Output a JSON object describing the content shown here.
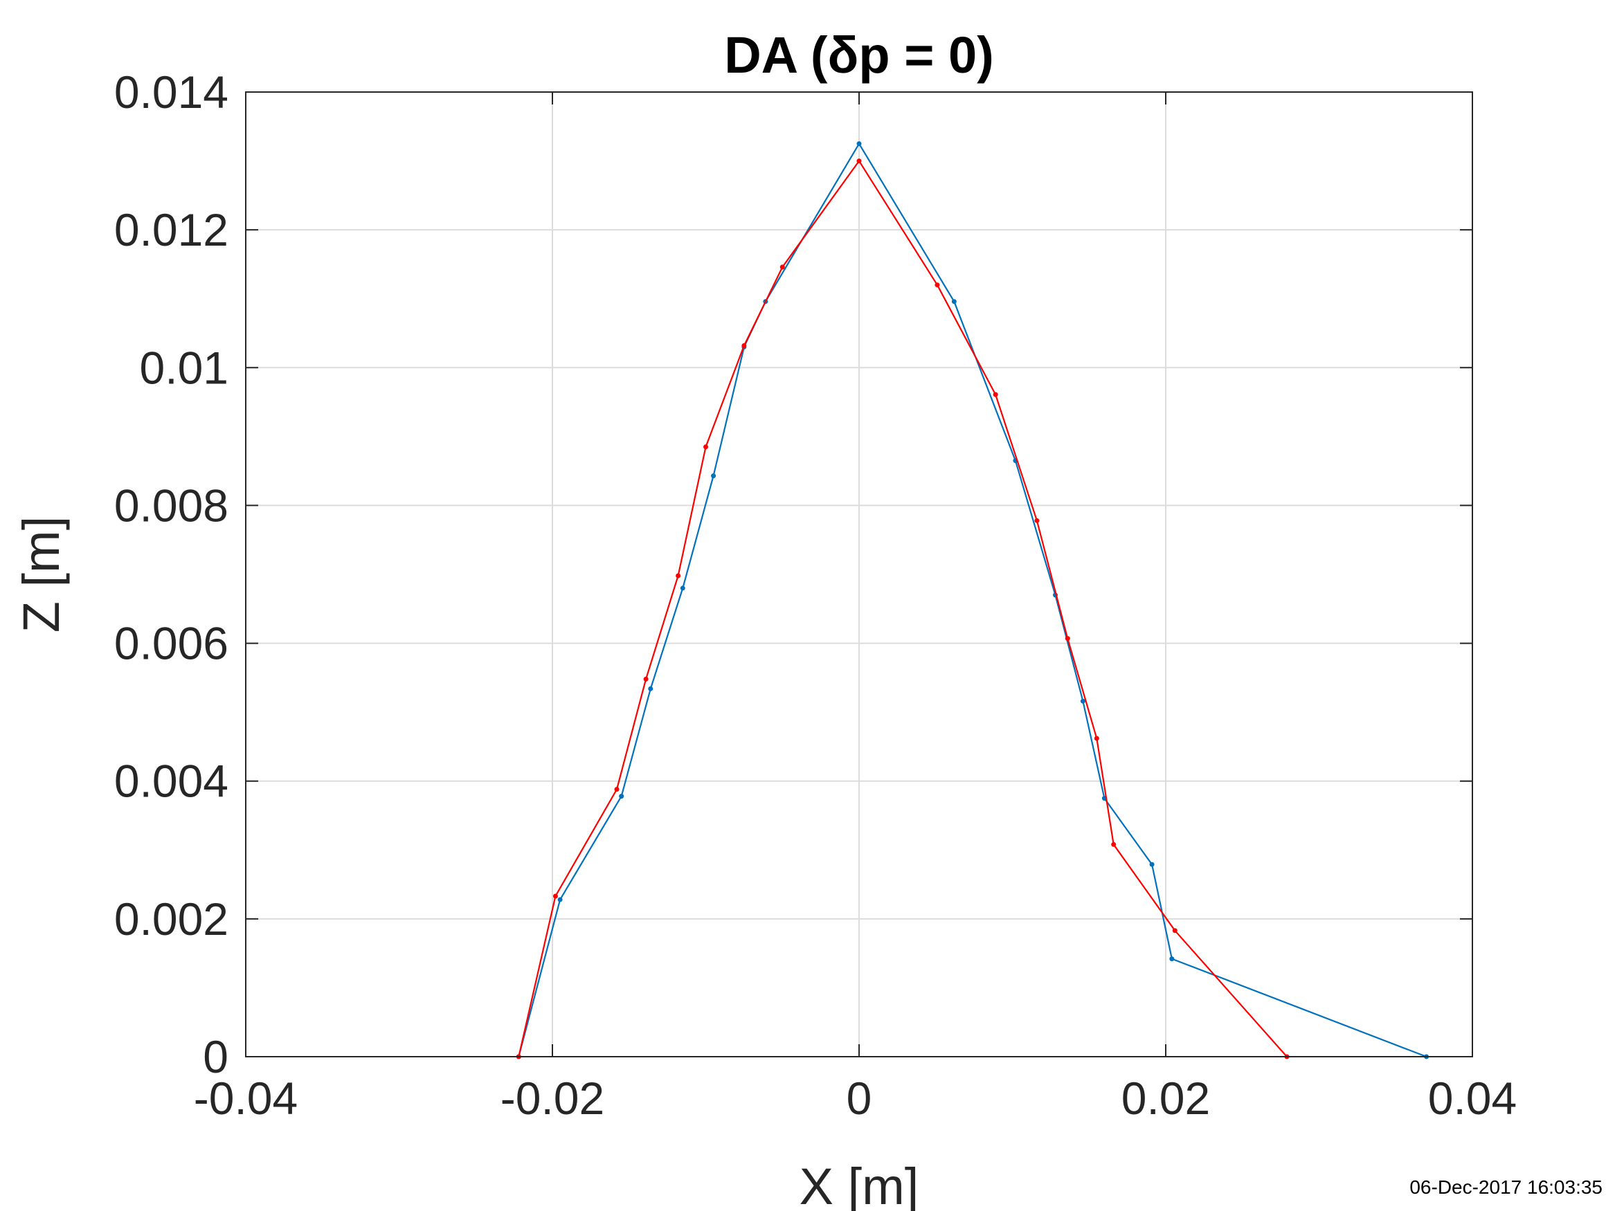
{
  "chart_data": {
    "type": "line",
    "title": "DA (δp = 0)",
    "xlabel": "X [m]",
    "ylabel": "Z [m]",
    "xlim": [
      -0.04,
      0.04
    ],
    "ylim": [
      0,
      0.014
    ],
    "xticks": [
      -0.04,
      -0.02,
      0,
      0.02,
      0.04
    ],
    "xtick_labels": [
      "-0.04",
      "-0.02",
      "0",
      "0.02",
      "0.04"
    ],
    "yticks": [
      0,
      0.002,
      0.004,
      0.006,
      0.008,
      0.01,
      0.012,
      0.014
    ],
    "ytick_labels": [
      "0",
      "0.002",
      "0.004",
      "0.006",
      "0.008",
      "0.01",
      "0.012",
      "0.014"
    ],
    "grid": true,
    "series": [
      {
        "color": "#0072BD",
        "x": [
          -0.0222,
          -0.0195,
          -0.0155,
          -0.0136,
          -0.0115,
          -0.0095,
          -0.0075,
          -0.0061,
          0.0,
          0.0062,
          0.0102,
          0.0128,
          0.0146,
          0.016,
          0.0191,
          0.0204,
          0.037
        ],
        "y": [
          0.0,
          0.00228,
          0.00378,
          0.00534,
          0.0068,
          0.00843,
          0.0103,
          0.01096,
          0.01325,
          0.01096,
          0.00865,
          0.0067,
          0.00516,
          0.00375,
          0.00279,
          0.00142,
          0.0
        ]
      },
      {
        "color": "#FF0000",
        "x": [
          -0.0222,
          -0.0198,
          -0.0158,
          -0.0139,
          -0.0118,
          -0.01,
          -0.0075,
          -0.005,
          0.0,
          0.0051,
          0.0089,
          0.0116,
          0.0136,
          0.0155,
          0.0166,
          0.0206,
          0.0279
        ],
        "y": [
          0.0,
          0.00233,
          0.00388,
          0.00548,
          0.00698,
          0.00885,
          0.01032,
          0.01146,
          0.013,
          0.0112,
          0.00961,
          0.00778,
          0.00607,
          0.00462,
          0.00308,
          0.00183,
          0.0
        ]
      }
    ],
    "timestamp": "06-Dec-2017 16:03:35"
  }
}
